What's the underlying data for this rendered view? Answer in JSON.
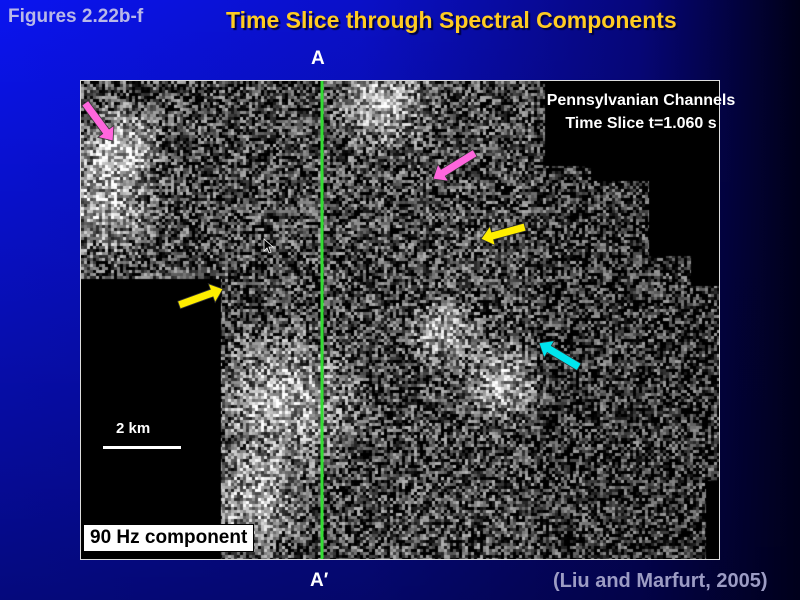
{
  "slide": {
    "figure_label": "Figures 2.22b-f",
    "title": "Time Slice through Spectral Components",
    "section_start_label": "A",
    "section_end_label": "A′",
    "citation": "(Liu and Marfurt, 2005)"
  },
  "image": {
    "caption_line1": "Pennsylvanian Channels",
    "caption_line2": "Time Slice t=1.060 s",
    "scale_label": "2 km",
    "component_label": "90 Hz component",
    "section_line_color": "#33dd33",
    "arrows": [
      {
        "color": "#ff66dd",
        "direction": "down-right"
      },
      {
        "color": "#ff66dd",
        "direction": "down-left"
      },
      {
        "color": "#ffee00",
        "direction": "left"
      },
      {
        "color": "#ffee00",
        "direction": "up-right"
      },
      {
        "color": "#00e5ee",
        "direction": "up-left"
      }
    ]
  },
  "colors": {
    "title": "#ffcc22",
    "background": "#0a14f0"
  }
}
